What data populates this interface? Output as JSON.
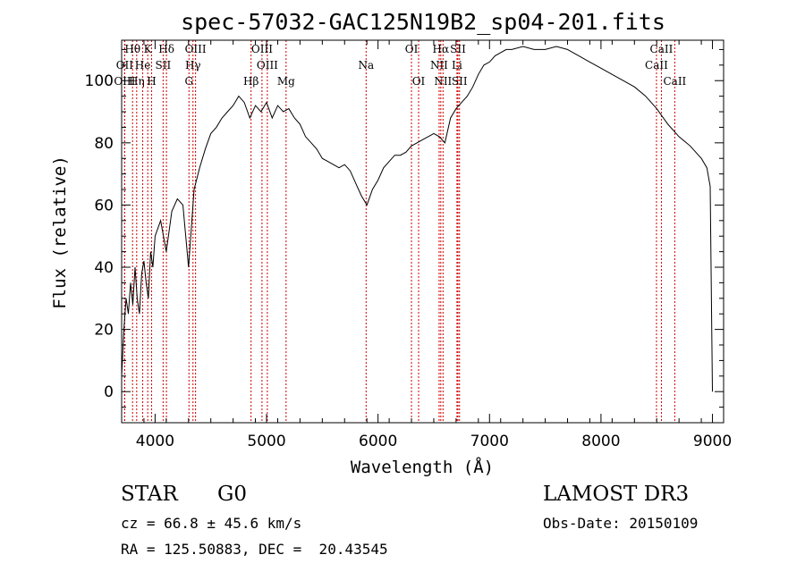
{
  "chart_data": {
    "type": "line",
    "title": "spec-57032-GAC125N19B2_sp04-201.fits",
    "xlabel": "Wavelength (Å)",
    "ylabel": "Flux (relative)",
    "xlim": [
      3700,
      9100
    ],
    "ylim": [
      -10,
      113
    ],
    "xticks": [
      4000,
      5000,
      6000,
      7000,
      8000,
      9000
    ],
    "yticks": [
      0,
      20,
      40,
      60,
      80,
      100
    ],
    "grid": false,
    "line_color": "#000000",
    "marker_color": "#cc0000",
    "series": [
      {
        "x": [
          3700,
          3720,
          3740,
          3760,
          3780,
          3800,
          3820,
          3840,
          3860,
          3880,
          3900,
          3920,
          3940,
          3960,
          3980,
          4000,
          4050,
          4100,
          4150,
          4200,
          4250,
          4300,
          4350,
          4400,
          4450,
          4500,
          4550,
          4600,
          4650,
          4700,
          4750,
          4800,
          4850,
          4900,
          4950,
          5000,
          5050,
          5100,
          5150,
          5200,
          5250,
          5300,
          5350,
          5400,
          5450,
          5500,
          5550,
          5600,
          5650,
          5700,
          5750,
          5800,
          5850,
          5900,
          5950,
          6000,
          6050,
          6100,
          6150,
          6200,
          6250,
          6300,
          6350,
          6400,
          6450,
          6500,
          6550,
          6600,
          6650,
          6700,
          6750,
          6800,
          6850,
          6900,
          6950,
          7000,
          7050,
          7100,
          7150,
          7200,
          7300,
          7400,
          7500,
          7600,
          7700,
          7800,
          7900,
          8000,
          8100,
          8200,
          8300,
          8400,
          8500,
          8600,
          8700,
          8800,
          8900,
          8950,
          8980,
          9000
        ],
        "y": [
          5,
          20,
          30,
          25,
          35,
          28,
          40,
          30,
          25,
          38,
          42,
          35,
          30,
          45,
          40,
          50,
          55,
          45,
          58,
          62,
          60,
          40,
          65,
          72,
          78,
          83,
          85,
          88,
          90,
          92,
          95,
          93,
          88,
          92,
          90,
          93,
          88,
          92,
          90,
          91,
          88,
          86,
          82,
          80,
          78,
          75,
          74,
          73,
          72,
          73,
          71,
          67,
          63,
          60,
          65,
          68,
          72,
          74,
          76,
          76,
          77,
          79,
          80,
          81,
          82,
          83,
          82,
          80,
          88,
          91,
          93,
          95,
          98,
          102,
          105,
          106,
          108,
          109,
          110,
          110,
          111,
          110,
          110,
          111,
          110,
          108,
          106,
          104,
          102,
          100,
          98,
          95,
          91,
          86,
          82,
          79,
          75,
          72,
          66,
          0
        ]
      }
    ],
    "spectral_lines": [
      {
        "label": "Hθ",
        "x": 3798,
        "row": 0
      },
      {
        "label": "OII",
        "x": 3727,
        "row": 1
      },
      {
        "label": "OIII",
        "x": 3727,
        "row": 2
      },
      {
        "label": "K",
        "x": 3934,
        "row": 0
      },
      {
        "label": "He",
        "x": 3889,
        "row": 1
      },
      {
        "label": "Hη",
        "x": 3835,
        "row": 2
      },
      {
        "label": "Hδ",
        "x": 4102,
        "row": 0
      },
      {
        "label": "SII",
        "x": 4072,
        "row": 1
      },
      {
        "label": "H",
        "x": 3969,
        "row": 2
      },
      {
        "label": "OIII",
        "x": 4363,
        "row": 0
      },
      {
        "label": "Hγ",
        "x": 4340,
        "row": 1
      },
      {
        "label": "G",
        "x": 4304,
        "row": 2
      },
      {
        "label": "OIII",
        "x": 4959,
        "row": 0
      },
      {
        "label": "OIII",
        "x": 5007,
        "row": 1
      },
      {
        "label": "Hβ",
        "x": 4861,
        "row": 2
      },
      {
        "label": "Mg",
        "x": 5175,
        "row": 2
      },
      {
        "label": "Na",
        "x": 5893,
        "row": 1
      },
      {
        "label": "OI",
        "x": 6300,
        "row": 0
      },
      {
        "label": "OI",
        "x": 6364,
        "row": 2
      },
      {
        "label": "Hα",
        "x": 6563,
        "row": 0
      },
      {
        "label": "SII",
        "x": 6717,
        "row": 0
      },
      {
        "label": "NII",
        "x": 6548,
        "row": 1
      },
      {
        "label": "Li",
        "x": 6708,
        "row": 1
      },
      {
        "label": "NII",
        "x": 6583,
        "row": 2
      },
      {
        "label": "SII",
        "x": 6731,
        "row": 2
      },
      {
        "label": "CaII",
        "x": 8542,
        "row": 0
      },
      {
        "label": "CaII",
        "x": 8498,
        "row": 1
      },
      {
        "label": "CaII",
        "x": 8662,
        "row": 2
      }
    ]
  },
  "info": {
    "class_label": "STAR",
    "subclass": "G0",
    "survey": "LAMOST DR3",
    "cz": "cz = 66.8 ± 45.6 km/s",
    "obs_date": "Obs-Date: 20150109",
    "coords": "RA = 125.50883, DEC =  20.43545"
  }
}
